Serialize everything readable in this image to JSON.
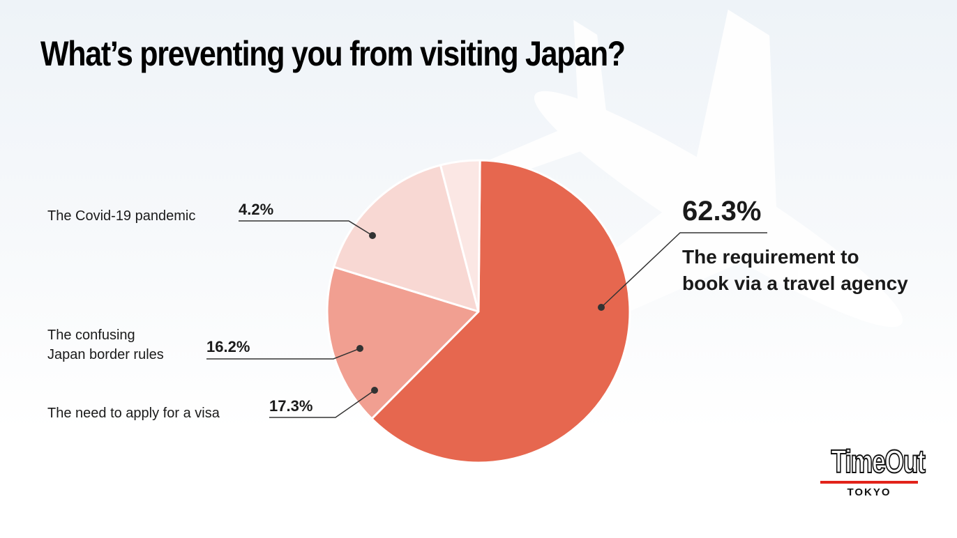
{
  "colors": {
    "slices": [
      "#e6674f",
      "#f19f91",
      "#f8d8d3",
      "#fbe7e4"
    ],
    "plane": "#ffffff",
    "logo_rule": "#e2231a"
  },
  "logo": {
    "main": "TimeOut",
    "sub": "TOKYO"
  },
  "chart_data": {
    "type": "pie",
    "title": "What’s preventing you from visiting Japan?",
    "slices": [
      {
        "label": "The requirement to book via a travel agency",
        "label_lines": [
          "The requirement to",
          "book via a travel agency"
        ],
        "value": 62.3,
        "value_label": "62.3%"
      },
      {
        "label": "The need to apply for a visa",
        "label_lines": [
          "The need to apply for a visa"
        ],
        "value": 17.3,
        "value_label": "17.3%"
      },
      {
        "label": "The confusing Japan border rules",
        "label_lines": [
          "The confusing",
          "Japan border rules"
        ],
        "value": 16.2,
        "value_label": "16.2%"
      },
      {
        "label": "The Covid-19 pandemic",
        "label_lines": [
          "The Covid-19 pandemic"
        ],
        "value": 4.2,
        "value_label": "4.2%"
      }
    ]
  }
}
